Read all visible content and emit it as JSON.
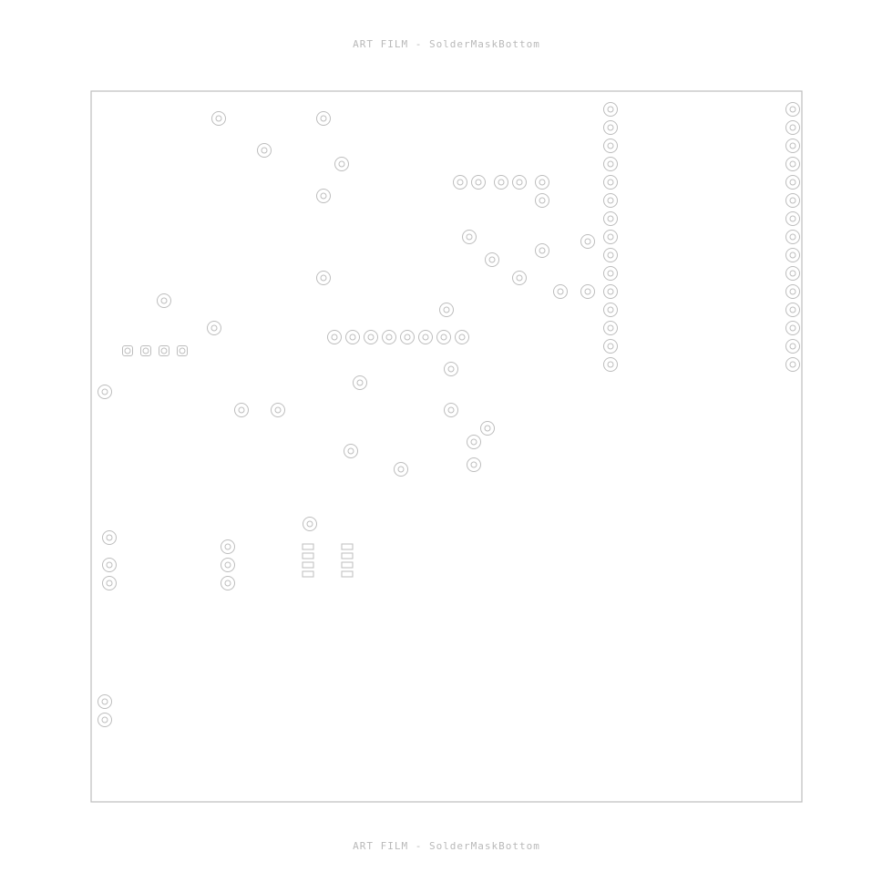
{
  "header": {
    "caption": "ART FILM - SolderMaskBottom"
  },
  "footer": {
    "caption": "ART FILM - SolderMaskBottom"
  },
  "film": {
    "stroke_color": "#bdbdbd",
    "background": "#ffffff"
  }
}
